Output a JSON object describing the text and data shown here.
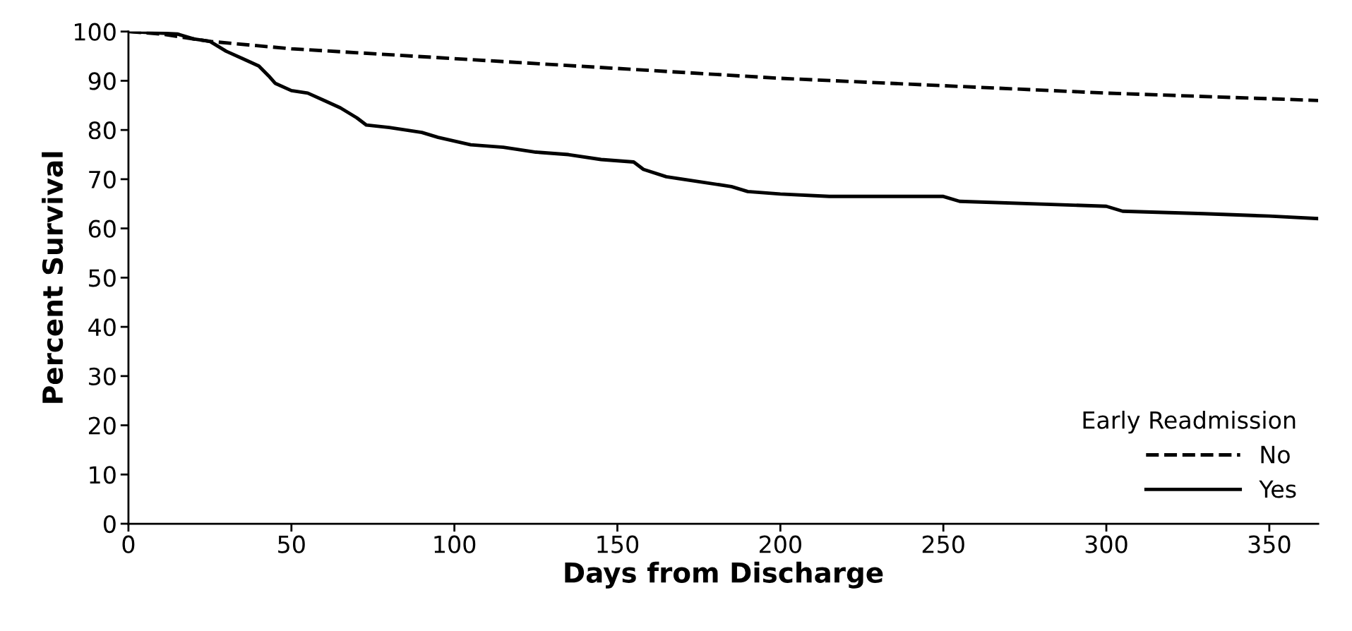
{
  "chart_data": {
    "type": "line",
    "xlabel": "Days from Discharge",
    "ylabel": "Percent Survival",
    "legend_title": "Early Readmission",
    "legend": "bottom right",
    "grid": false,
    "marker": "none",
    "xlim": [
      0,
      365
    ],
    "ylim": [
      0,
      100
    ],
    "xticks": [
      0,
      50,
      100,
      150,
      200,
      250,
      300,
      350
    ],
    "yticks": [
      0,
      10,
      20,
      30,
      40,
      50,
      60,
      70,
      80,
      90,
      100
    ],
    "series": [
      {
        "name": "No",
        "color": "#000000",
        "line_style": "dashed",
        "x": [
          0,
          10,
          25,
          50,
          100,
          150,
          200,
          250,
          300,
          365
        ],
        "values": [
          100,
          99.5,
          98,
          96.5,
          94.5,
          92.5,
          90.5,
          89,
          87.5,
          86
        ]
      },
      {
        "name": "Yes",
        "color": "#000000",
        "line_style": "solid",
        "x": [
          0,
          15,
          20,
          25,
          30,
          35,
          40,
          43,
          45,
          50,
          55,
          60,
          65,
          70,
          73,
          80,
          90,
          95,
          105,
          115,
          125,
          135,
          145,
          155,
          158,
          165,
          175,
          185,
          190,
          200,
          215,
          250,
          255,
          300,
          305,
          330,
          350,
          365
        ],
        "values": [
          100,
          99.5,
          98.5,
          98,
          96,
          94.5,
          93,
          91,
          89.5,
          88,
          87.5,
          86,
          84.5,
          82.5,
          81,
          80.5,
          79.5,
          78.5,
          77,
          76.5,
          75.5,
          75,
          74,
          73.5,
          72,
          70.5,
          69.5,
          68.5,
          67.5,
          67,
          66.5,
          66.5,
          65.5,
          64.5,
          63.5,
          63,
          62.5,
          62
        ]
      }
    ]
  }
}
